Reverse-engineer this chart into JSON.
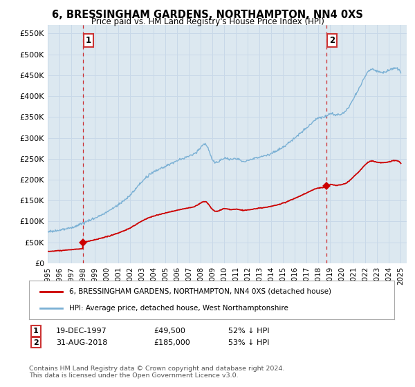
{
  "title": "6, BRESSINGHAM GARDENS, NORTHAMPTON, NN4 0XS",
  "subtitle": "Price paid vs. HM Land Registry's House Price Index (HPI)",
  "ylabel_ticks": [
    "£0",
    "£50K",
    "£100K",
    "£150K",
    "£200K",
    "£250K",
    "£300K",
    "£350K",
    "£400K",
    "£450K",
    "£500K",
    "£550K"
  ],
  "ytick_values": [
    0,
    50000,
    100000,
    150000,
    200000,
    250000,
    300000,
    350000,
    400000,
    450000,
    500000,
    550000
  ],
  "ylim": [
    0,
    570000
  ],
  "xlim_start": 1995.0,
  "xlim_end": 2025.5,
  "purchase1_date": 1997.97,
  "purchase1_price": 49500,
  "purchase1_label": "1",
  "purchase2_date": 2018.67,
  "purchase2_price": 185000,
  "purchase2_label": "2",
  "legend_line1": "6, BRESSINGHAM GARDENS, NORTHAMPTON, NN4 0XS (detached house)",
  "legend_line2": "HPI: Average price, detached house, West Northamptonshire",
  "footnote_line1": "Contains HM Land Registry data © Crown copyright and database right 2024.",
  "footnote_line2": "This data is licensed under the Open Government Licence v3.0.",
  "red_color": "#cc0000",
  "blue_color": "#7ab0d4",
  "grid_color": "#c8d8e8",
  "bg_color": "#ffffff",
  "plot_bg": "#dce8f0"
}
